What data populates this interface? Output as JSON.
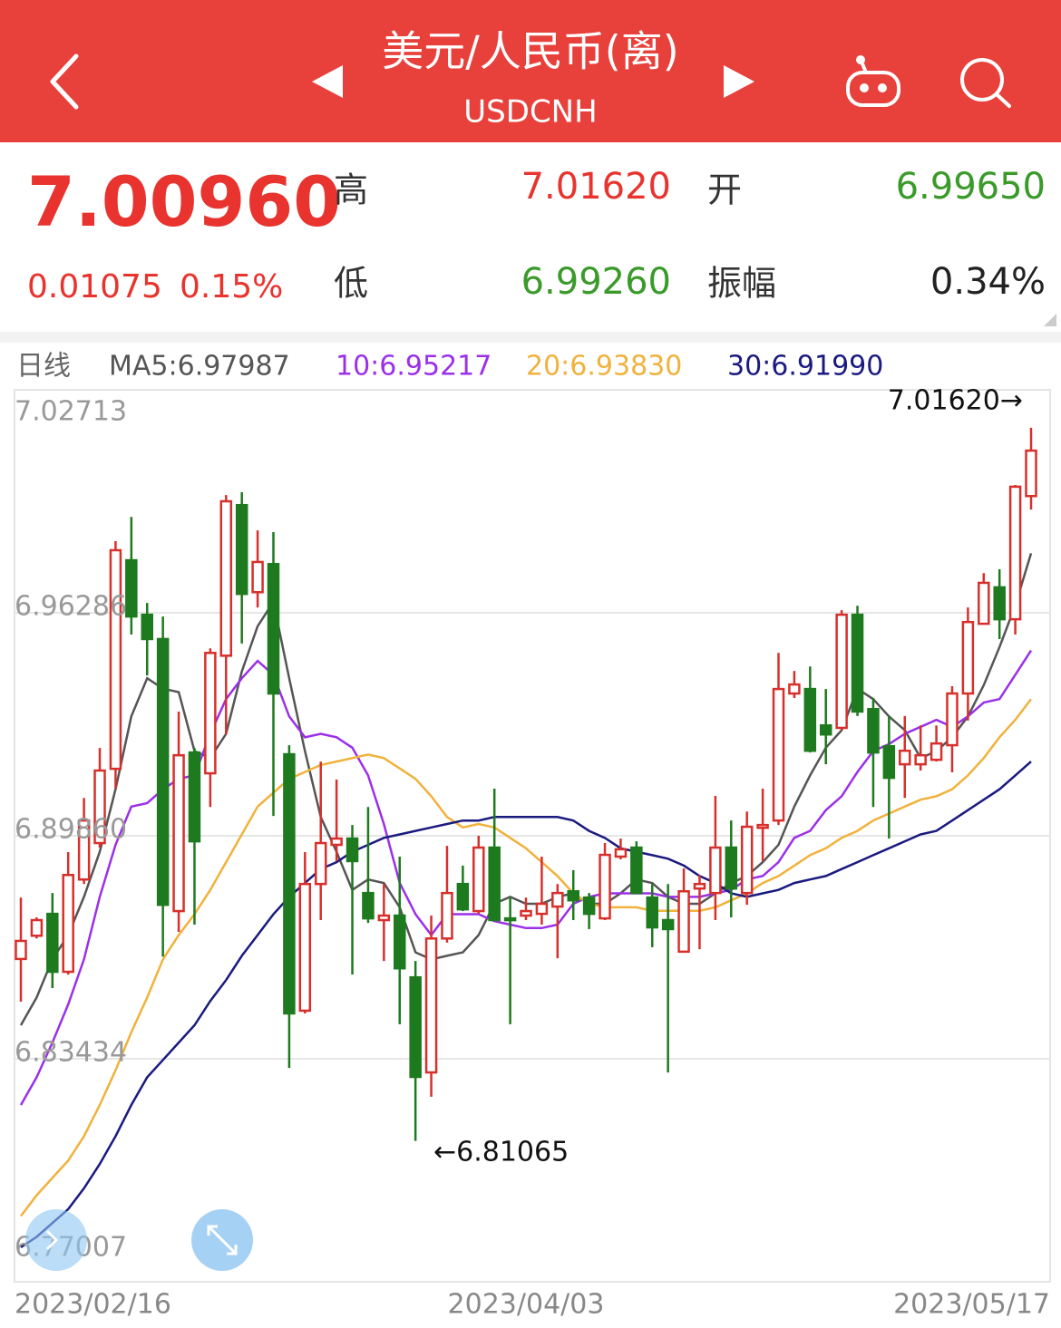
{
  "header": {
    "title": "美元/人民币(离)",
    "symbol": "USDCNH"
  },
  "quote": {
    "price": "7.00960",
    "change": "0.01075",
    "change_pct": "0.15%",
    "high_label": "高",
    "high": "7.01620",
    "open_label": "开",
    "open": "6.99650",
    "low_label": "低",
    "low": "6.99260",
    "amp_label": "振幅",
    "amp": "0.34%"
  },
  "chart_data": {
    "type": "candlestick",
    "period_label": "日线",
    "up_color": "#d7302c",
    "down_color": "#1e7a1e",
    "grid": true,
    "ylim": [
      6.77007,
      7.02713
    ],
    "yticks": [
      7.02713,
      6.96286,
      {
        "value": 6.8986,
        "label": "6.89860"
      },
      6.83434,
      6.77007
    ],
    "annotations": [
      {
        "text": "7.01620→"
      },
      {
        "text": "←6.81065"
      }
    ],
    "categories": [
      "2023/02/16",
      null,
      null,
      null,
      null,
      null,
      null,
      null,
      null,
      null,
      null,
      null,
      null,
      null,
      null,
      null,
      null,
      null,
      null,
      null,
      null,
      null,
      null,
      null,
      null,
      null,
      null,
      null,
      null,
      null,
      null,
      null,
      "2023/04/03",
      null,
      null,
      null,
      null,
      null,
      null,
      null,
      null,
      null,
      null,
      null,
      null,
      null,
      null,
      null,
      null,
      null,
      null,
      null,
      null,
      null,
      null,
      null,
      null,
      null,
      null,
      null,
      null,
      null,
      null,
      null,
      "2023/05/17"
    ],
    "open": [
      6.8631,
      6.8698,
      6.8761,
      6.8594,
      6.886,
      6.8965,
      6.9179,
      6.978,
      6.9623,
      6.9553,
      6.8769,
      6.9226,
      6.9166,
      6.9505,
      6.9939,
      6.9688,
      6.9769,
      6.9221,
      6.8482,
      6.8847,
      6.896,
      6.8978,
      6.8821,
      6.8743,
      6.8756,
      6.8578,
      6.8304,
      6.869,
      6.8847,
      6.8769,
      6.8952,
      6.8748,
      6.8756,
      6.8761,
      6.8782,
      6.8826,
      6.8808,
      6.8748,
      6.8926,
      6.8952,
      6.8808,
      6.8743,
      6.8652,
      6.8834,
      6.8821,
      6.8952,
      6.8821,
      6.9009,
      6.903,
      6.9396,
      6.9409,
      6.9304,
      6.9297,
      6.9623,
      6.9351,
      6.9244,
      6.9192,
      6.9192,
      6.9205,
      6.9247,
      6.9396,
      6.9597,
      6.9702,
      6.961,
      6.9965
    ],
    "high": [
      6.8808,
      6.8751,
      6.8821,
      6.8939,
      6.9095,
      6.9239,
      6.9835,
      6.9905,
      6.9657,
      6.9618,
      6.9344,
      6.9239,
      6.9526,
      6.9968,
      6.9976,
      6.9866,
      6.9861,
      6.9247,
      6.8939,
      6.92,
      6.9148,
      6.9017,
      6.9069,
      6.8847,
      6.8926,
      6.8625,
      6.8756,
      6.8957,
      6.89,
      6.8986,
      6.9122,
      6.8808,
      6.8808,
      6.8926,
      6.8847,
      6.8887,
      6.8821,
      6.8965,
      6.8978,
      6.897,
      6.8847,
      6.8847,
      6.8892,
      6.8873,
      6.9101,
      6.903,
      6.9056,
      6.9122,
      6.9513,
      6.9461,
      6.9474,
      6.9409,
      6.9636,
      6.9649,
      6.9383,
      6.9331,
      6.9331,
      6.9304,
      6.9304,
      6.9417,
      6.9644,
      6.9743,
      6.9754,
      6.9997,
      7.0162
    ],
    "low": [
      6.8508,
      6.869,
      6.8547,
      6.8586,
      6.8847,
      6.8952,
      6.9122,
      6.9566,
      6.9448,
      6.8638,
      6.8709,
      6.873,
      6.9069,
      6.9278,
      6.954,
      6.9644,
      6.9043,
      6.8317,
      6.8474,
      6.8743,
      6.8913,
      6.8586,
      6.8735,
      6.8625,
      6.8443,
      6.81065,
      6.8234,
      6.8678,
      6.8769,
      6.8761,
      6.8743,
      6.8443,
      6.8743,
      6.873,
      6.8633,
      6.8743,
      6.8717,
      6.8743,
      6.8918,
      6.8821,
      6.8665,
      6.8304,
      6.8652,
      6.8659,
      6.8743,
      6.8751,
      6.8787,
      6.8913,
      6.9017,
      6.9383,
      6.9226,
      6.9192,
      6.9291,
      6.9331,
      6.9069,
      6.8978,
      6.9095,
      6.9174,
      6.92,
      6.9169,
      6.9318,
      6.9597,
      6.9553,
      6.9566,
      6.9926
    ],
    "close": [
      6.8683,
      6.8743,
      6.8594,
      6.8873,
      6.903,
      6.9174,
      6.9809,
      6.9618,
      6.9553,
      6.8787,
      6.9218,
      6.897,
      6.9513,
      6.995,
      6.9683,
      6.9775,
      6.9396,
      6.8474,
      6.8847,
      6.8965,
      6.8978,
      6.8913,
      6.8748,
      6.8756,
      6.8604,
      6.8291,
      6.869,
      6.8821,
      6.8774,
      6.8952,
      6.8743,
      6.8743,
      6.8769,
      6.879,
      6.8821,
      6.88,
      6.8761,
      6.8931,
      6.8947,
      6.8821,
      6.8722,
      6.8717,
      6.8826,
      6.8847,
      6.8952,
      6.8834,
      6.9012,
      6.9017,
      6.9409,
      6.9422,
      6.9231,
      6.9278,
      6.9623,
      6.9344,
      6.9226,
      6.9153,
      6.9231,
      6.9218,
      6.9252,
      6.9396,
      6.9602,
      6.9715,
      6.961,
      6.9992,
      7.0096
    ],
    "series": [
      {
        "name": "MA5:6.97987",
        "color": "#555555",
        "values": [
          6.844,
          6.852,
          6.863,
          6.87,
          6.881,
          6.894,
          6.912,
          6.933,
          6.944,
          6.941,
          6.94,
          6.923,
          6.921,
          6.928,
          6.946,
          6.959,
          6.966,
          6.944,
          6.923,
          6.904,
          6.894,
          6.883,
          6.886,
          6.885,
          6.878,
          6.865,
          6.863,
          6.864,
          6.865,
          6.87,
          6.879,
          6.881,
          6.879,
          6.879,
          6.881,
          6.882,
          6.879,
          6.879,
          6.882,
          6.886,
          6.885,
          6.881,
          6.879,
          6.879,
          6.882,
          6.885,
          6.887,
          6.891,
          6.896,
          6.907,
          6.916,
          6.924,
          6.929,
          6.941,
          6.938,
          6.933,
          6.929,
          6.921,
          6.923,
          6.927,
          6.933,
          6.942,
          6.953,
          6.965,
          6.98
        ]
      },
      {
        "name": "10:6.95217",
        "color": "#9b30e8",
        "values": [
          6.821,
          6.829,
          6.839,
          6.85,
          6.863,
          6.881,
          6.896,
          6.907,
          6.908,
          6.912,
          6.915,
          6.916,
          6.928,
          6.938,
          6.944,
          6.949,
          6.945,
          6.933,
          6.927,
          6.928,
          6.927,
          6.924,
          6.916,
          6.902,
          6.885,
          6.876,
          6.87,
          6.876,
          6.876,
          6.876,
          6.874,
          6.873,
          6.872,
          6.872,
          6.873,
          6.879,
          6.881,
          6.882,
          6.882,
          6.882,
          6.882,
          6.881,
          6.881,
          6.881,
          6.882,
          6.883,
          6.886,
          6.887,
          6.891,
          6.898,
          6.9,
          6.906,
          6.91,
          6.917,
          6.923,
          6.925,
          6.928,
          6.93,
          6.932,
          6.93,
          6.933,
          6.937,
          6.938,
          6.945,
          6.952
        ]
      },
      {
        "name": "20:6.93830",
        "color": "#f0b23c",
        "values": [
          6.789,
          6.795,
          6.8,
          6.805,
          6.812,
          6.821,
          6.831,
          6.842,
          6.852,
          6.863,
          6.87,
          6.876,
          6.883,
          6.891,
          6.899,
          6.907,
          6.911,
          6.915,
          6.917,
          6.919,
          6.92,
          6.921,
          6.922,
          6.921,
          6.918,
          6.915,
          6.91,
          6.904,
          6.901,
          6.902,
          6.901,
          6.898,
          6.895,
          6.891,
          6.887,
          6.882,
          6.879,
          6.878,
          6.878,
          6.878,
          6.877,
          6.877,
          6.877,
          6.877,
          6.878,
          6.88,
          6.882,
          6.885,
          6.887,
          6.89,
          6.893,
          6.895,
          6.898,
          6.9,
          6.903,
          6.905,
          6.907,
          6.909,
          6.91,
          6.912,
          6.916,
          6.921,
          6.927,
          6.932,
          6.938
        ]
      },
      {
        "name": "30:6.91990",
        "color": "#1a1a80",
        "values": [
          6.78,
          6.783,
          6.787,
          6.791,
          6.797,
          6.804,
          6.812,
          6.821,
          6.829,
          6.834,
          6.839,
          6.844,
          6.851,
          6.857,
          6.864,
          6.87,
          6.876,
          6.881,
          6.885,
          6.889,
          6.891,
          6.894,
          6.896,
          6.898,
          6.899,
          6.9,
          6.901,
          6.902,
          6.903,
          6.903,
          6.904,
          6.904,
          6.904,
          6.904,
          6.904,
          6.903,
          6.9,
          6.898,
          6.895,
          6.894,
          6.893,
          6.892,
          6.89,
          6.887,
          6.885,
          6.882,
          6.881,
          6.882,
          6.883,
          6.885,
          6.886,
          6.887,
          6.889,
          6.891,
          6.893,
          6.895,
          6.897,
          6.899,
          6.9,
          6.903,
          6.906,
          6.909,
          6.912,
          6.916,
          6.92
        ]
      }
    ]
  }
}
